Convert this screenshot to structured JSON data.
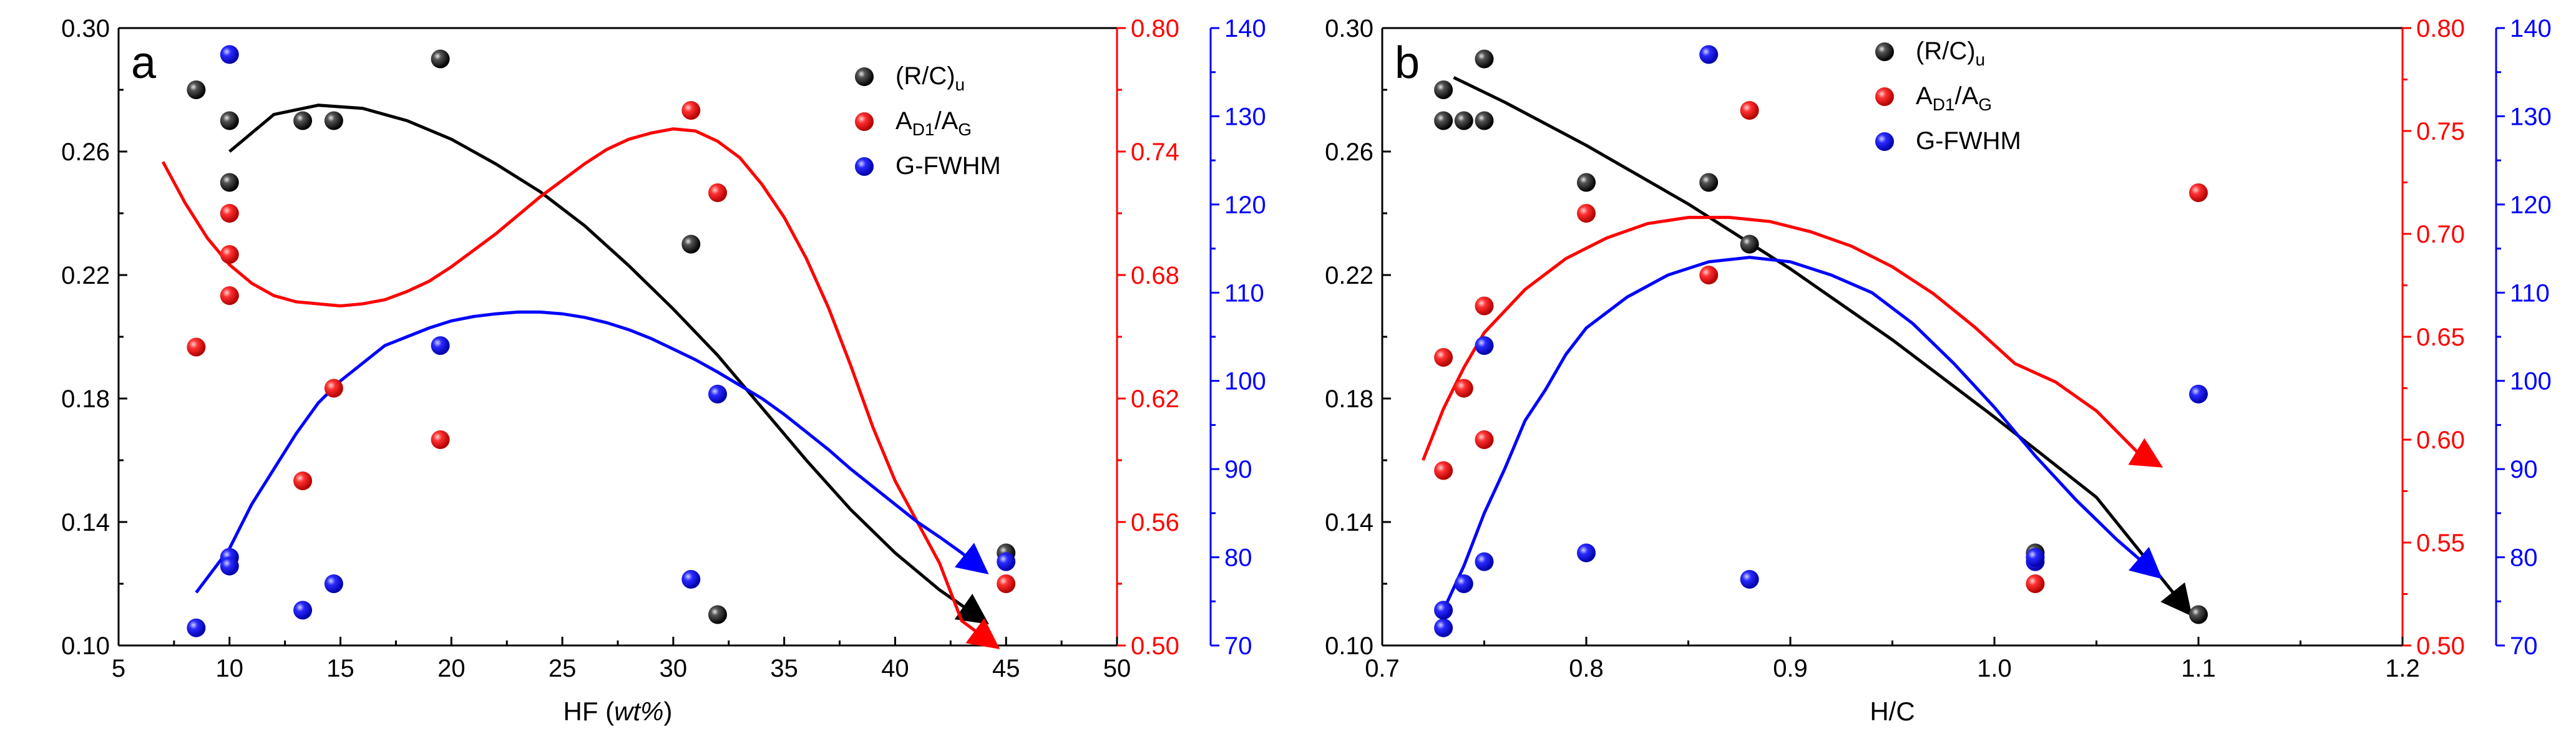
{
  "colors": {
    "black": "#000000",
    "red": "#ff0000",
    "blue": "#0000ff"
  },
  "chart_data": [
    {
      "type": "scatter",
      "panel_label": "a",
      "xlabel": "HF (wt%)",
      "xlabel_parts": {
        "prefix": "HF (",
        "italic": "wt%",
        "suffix": ")"
      },
      "xlim": [
        5,
        50
      ],
      "xticks": [
        5,
        10,
        15,
        20,
        25,
        30,
        35,
        40,
        45,
        50
      ],
      "y_left": {
        "lim": [
          0.1,
          0.3
        ],
        "ticks": [
          "0.10",
          "0.14",
          "0.18",
          "0.22",
          "0.26",
          "0.30"
        ],
        "color": "#000000"
      },
      "y_right1": {
        "lim": [
          0.5,
          0.8
        ],
        "ticks": [
          "0.50",
          "0.56",
          "0.62",
          "0.68",
          "0.74",
          "0.80"
        ],
        "color": "#ff0000"
      },
      "y_right2": {
        "lim": [
          70,
          140
        ],
        "ticks": [
          "70",
          "80",
          "90",
          "100",
          "110",
          "120",
          "130",
          "140"
        ],
        "color": "#0000ff"
      },
      "legend": [
        {
          "label": "(R/C)",
          "sub": "u",
          "color": "#000000"
        },
        {
          "label": "A",
          "sub": "D1",
          "label2": "/A",
          "sub2": "G",
          "color": "#ff0000"
        },
        {
          "label": "G-FWHM",
          "color": "#0000ff"
        }
      ],
      "series": [
        {
          "axis": "left",
          "color": "#000000",
          "points": [
            [
              8.5,
              0.28
            ],
            [
              10,
              0.27
            ],
            [
              10,
              0.25
            ],
            [
              13.3,
              0.27
            ],
            [
              14.7,
              0.27
            ],
            [
              19.5,
              0.29
            ],
            [
              30.8,
              0.23
            ],
            [
              32,
              0.11
            ],
            [
              45,
              0.13
            ]
          ],
          "trend": [
            [
              10,
              0.26
            ],
            [
              12,
              0.272
            ],
            [
              14,
              0.275
            ],
            [
              16,
              0.274
            ],
            [
              18,
              0.27
            ],
            [
              20,
              0.264
            ],
            [
              22,
              0.256
            ],
            [
              24,
              0.247
            ],
            [
              26,
              0.236
            ],
            [
              28,
              0.223
            ],
            [
              30,
              0.209
            ],
            [
              32,
              0.194
            ],
            [
              34,
              0.177
            ],
            [
              36,
              0.16
            ],
            [
              38,
              0.144
            ],
            [
              40,
              0.13
            ],
            [
              42,
              0.118
            ],
            [
              44,
              0.108
            ]
          ]
        },
        {
          "axis": "right1",
          "color": "#ff0000",
          "points": [
            [
              8.5,
              0.645
            ],
            [
              10,
              0.71
            ],
            [
              10,
              0.69
            ],
            [
              10,
              0.67
            ],
            [
              13.3,
              0.58
            ],
            [
              14.7,
              0.625
            ],
            [
              19.5,
              0.6
            ],
            [
              30.8,
              0.76
            ],
            [
              32,
              0.72
            ],
            [
              45,
              0.53
            ]
          ],
          "trend": [
            [
              7,
              0.735
            ],
            [
              8,
              0.715
            ],
            [
              9,
              0.698
            ],
            [
              10,
              0.685
            ],
            [
              11,
              0.676
            ],
            [
              12,
              0.67
            ],
            [
              13,
              0.667
            ],
            [
              14,
              0.666
            ],
            [
              15,
              0.665
            ],
            [
              16,
              0.666
            ],
            [
              17,
              0.668
            ],
            [
              18,
              0.672
            ],
            [
              19,
              0.677
            ],
            [
              20,
              0.684
            ],
            [
              21,
              0.692
            ],
            [
              22,
              0.7
            ],
            [
              23,
              0.709
            ],
            [
              24,
              0.718
            ],
            [
              25,
              0.726
            ],
            [
              26,
              0.734
            ],
            [
              27,
              0.741
            ],
            [
              28,
              0.746
            ],
            [
              29,
              0.749
            ],
            [
              30,
              0.751
            ],
            [
              31,
              0.75
            ],
            [
              32,
              0.745
            ],
            [
              33,
              0.737
            ],
            [
              34,
              0.724
            ],
            [
              35,
              0.708
            ],
            [
              36,
              0.688
            ],
            [
              37,
              0.664
            ],
            [
              38,
              0.636
            ],
            [
              39,
              0.606
            ],
            [
              40,
              0.58
            ],
            [
              41,
              0.56
            ],
            [
              42,
              0.54
            ],
            [
              43,
              0.512
            ],
            [
              44.5,
              0.5
            ]
          ]
        },
        {
          "axis": "right2",
          "color": "#0000ff",
          "points": [
            [
              8.5,
              72
            ],
            [
              10,
              137
            ],
            [
              10,
              80
            ],
            [
              10,
              79
            ],
            [
              13.3,
              74
            ],
            [
              14.7,
              77
            ],
            [
              19.5,
              104
            ],
            [
              30.8,
              77.5
            ],
            [
              32,
              98.5
            ],
            [
              45,
              79.5
            ]
          ],
          "trend": [
            [
              8.5,
              76
            ],
            [
              10,
              81
            ],
            [
              11,
              86
            ],
            [
              12,
              90
            ],
            [
              13,
              94
            ],
            [
              14,
              97.5
            ],
            [
              15,
              100
            ],
            [
              16,
              102
            ],
            [
              17,
              104
            ],
            [
              18,
              105
            ],
            [
              19,
              106
            ],
            [
              20,
              106.8
            ],
            [
              21,
              107.3
            ],
            [
              22,
              107.6
            ],
            [
              23,
              107.8
            ],
            [
              24,
              107.8
            ],
            [
              25,
              107.6
            ],
            [
              26,
              107.2
            ],
            [
              27,
              106.6
            ],
            [
              28,
              105.8
            ],
            [
              29,
              104.8
            ],
            [
              30,
              103.6
            ],
            [
              31,
              102.4
            ],
            [
              32,
              101
            ],
            [
              33,
              99.5
            ],
            [
              34,
              98
            ],
            [
              35,
              96.2
            ],
            [
              36,
              94.2
            ],
            [
              37,
              92.2
            ],
            [
              38,
              90
            ],
            [
              39,
              88
            ],
            [
              40,
              86
            ],
            [
              41,
              84
            ],
            [
              42,
              82.3
            ],
            [
              43,
              80.5
            ],
            [
              44,
              78.5
            ]
          ]
        }
      ]
    },
    {
      "type": "scatter",
      "panel_label": "b",
      "xlabel": "H/C",
      "xlim": [
        0.7,
        1.2
      ],
      "xticks": [
        "0.7",
        "0.8",
        "0.9",
        "1.0",
        "1.1",
        "1.2"
      ],
      "y_left": {
        "lim": [
          0.1,
          0.3
        ],
        "ticks": [
          "0.10",
          "0.14",
          "0.18",
          "0.22",
          "0.26",
          "0.30"
        ],
        "color": "#000000"
      },
      "y_right1": {
        "lim": [
          0.5,
          0.8
        ],
        "ticks": [
          "0.50",
          "0.55",
          "0.60",
          "0.65",
          "0.70",
          "0.75",
          "0.80"
        ],
        "color": "#ff0000"
      },
      "y_right2": {
        "lim": [
          70,
          140
        ],
        "ticks": [
          "70",
          "80",
          "90",
          "100",
          "110",
          "120",
          "130",
          "140"
        ],
        "color": "#0000ff"
      },
      "legend": [
        {
          "label": "(R/C)",
          "sub": "u",
          "color": "#000000"
        },
        {
          "label": "A",
          "sub": "D1",
          "label2": "/A",
          "sub2": "G",
          "color": "#ff0000"
        },
        {
          "label": "G-FWHM",
          "color": "#0000ff"
        }
      ],
      "series": [
        {
          "axis": "left",
          "color": "#000000",
          "points": [
            [
              0.73,
              0.28
            ],
            [
              0.73,
              0.27
            ],
            [
              0.74,
              0.27
            ],
            [
              0.75,
              0.27
            ],
            [
              0.75,
              0.29
            ],
            [
              0.8,
              0.25
            ],
            [
              0.86,
              0.25
            ],
            [
              0.88,
              0.23
            ],
            [
              1.02,
              0.13
            ],
            [
              1.1,
              0.11
            ]
          ],
          "trend": [
            [
              0.735,
              0.284
            ],
            [
              0.76,
              0.276
            ],
            [
              0.8,
              0.262
            ],
            [
              0.85,
              0.243
            ],
            [
              0.9,
              0.222
            ],
            [
              0.95,
              0.199
            ],
            [
              1.0,
              0.174
            ],
            [
              1.05,
              0.148
            ],
            [
              1.095,
              0.111
            ]
          ]
        },
        {
          "axis": "right1",
          "color": "#ff0000",
          "points": [
            [
              0.73,
              0.64
            ],
            [
              0.73,
              0.585
            ],
            [
              0.74,
              0.625
            ],
            [
              0.75,
              0.665
            ],
            [
              0.75,
              0.6
            ],
            [
              0.8,
              0.71
            ],
            [
              0.86,
              0.68
            ],
            [
              0.88,
              0.76
            ],
            [
              1.02,
              0.53
            ],
            [
              1.1,
              0.72
            ]
          ],
          "trend": [
            [
              0.72,
              0.59
            ],
            [
              0.73,
              0.615
            ],
            [
              0.74,
              0.635
            ],
            [
              0.75,
              0.652
            ],
            [
              0.77,
              0.673
            ],
            [
              0.79,
              0.688
            ],
            [
              0.81,
              0.698
            ],
            [
              0.83,
              0.705
            ],
            [
              0.85,
              0.708
            ],
            [
              0.87,
              0.708
            ],
            [
              0.89,
              0.706
            ],
            [
              0.91,
              0.701
            ],
            [
              0.93,
              0.694
            ],
            [
              0.95,
              0.684
            ],
            [
              0.97,
              0.671
            ],
            [
              0.99,
              0.655
            ],
            [
              1.01,
              0.637
            ],
            [
              1.03,
              0.628
            ],
            [
              1.05,
              0.614
            ],
            [
              1.07,
              0.594
            ],
            [
              1.08,
              0.588
            ]
          ]
        },
        {
          "axis": "right2",
          "color": "#0000ff",
          "points": [
            [
              0.73,
              72
            ],
            [
              0.73,
              74
            ],
            [
              0.74,
              77
            ],
            [
              0.75,
              79.5
            ],
            [
              0.75,
              104
            ],
            [
              0.8,
              80.5
            ],
            [
              0.86,
              137
            ],
            [
              0.88,
              77.5
            ],
            [
              1.02,
              79.5
            ],
            [
              1.02,
              80
            ],
            [
              1.1,
              98.5
            ]
          ],
          "trend": [
            [
              0.73,
              74
            ],
            [
              0.74,
              79
            ],
            [
              0.75,
              85
            ],
            [
              0.76,
              90
            ],
            [
              0.77,
              95.5
            ],
            [
              0.78,
              99
            ],
            [
              0.79,
              103
            ],
            [
              0.8,
              106
            ],
            [
              0.82,
              109.5
            ],
            [
              0.84,
              112
            ],
            [
              0.86,
              113.5
            ],
            [
              0.88,
              114
            ],
            [
              0.9,
              113.5
            ],
            [
              0.92,
              112
            ],
            [
              0.94,
              110
            ],
            [
              0.96,
              106.5
            ],
            [
              0.98,
              102
            ],
            [
              1.0,
              97
            ],
            [
              1.02,
              91.5
            ],
            [
              1.04,
              86.5
            ],
            [
              1.06,
              82
            ],
            [
              1.08,
              78
            ]
          ]
        }
      ]
    }
  ]
}
